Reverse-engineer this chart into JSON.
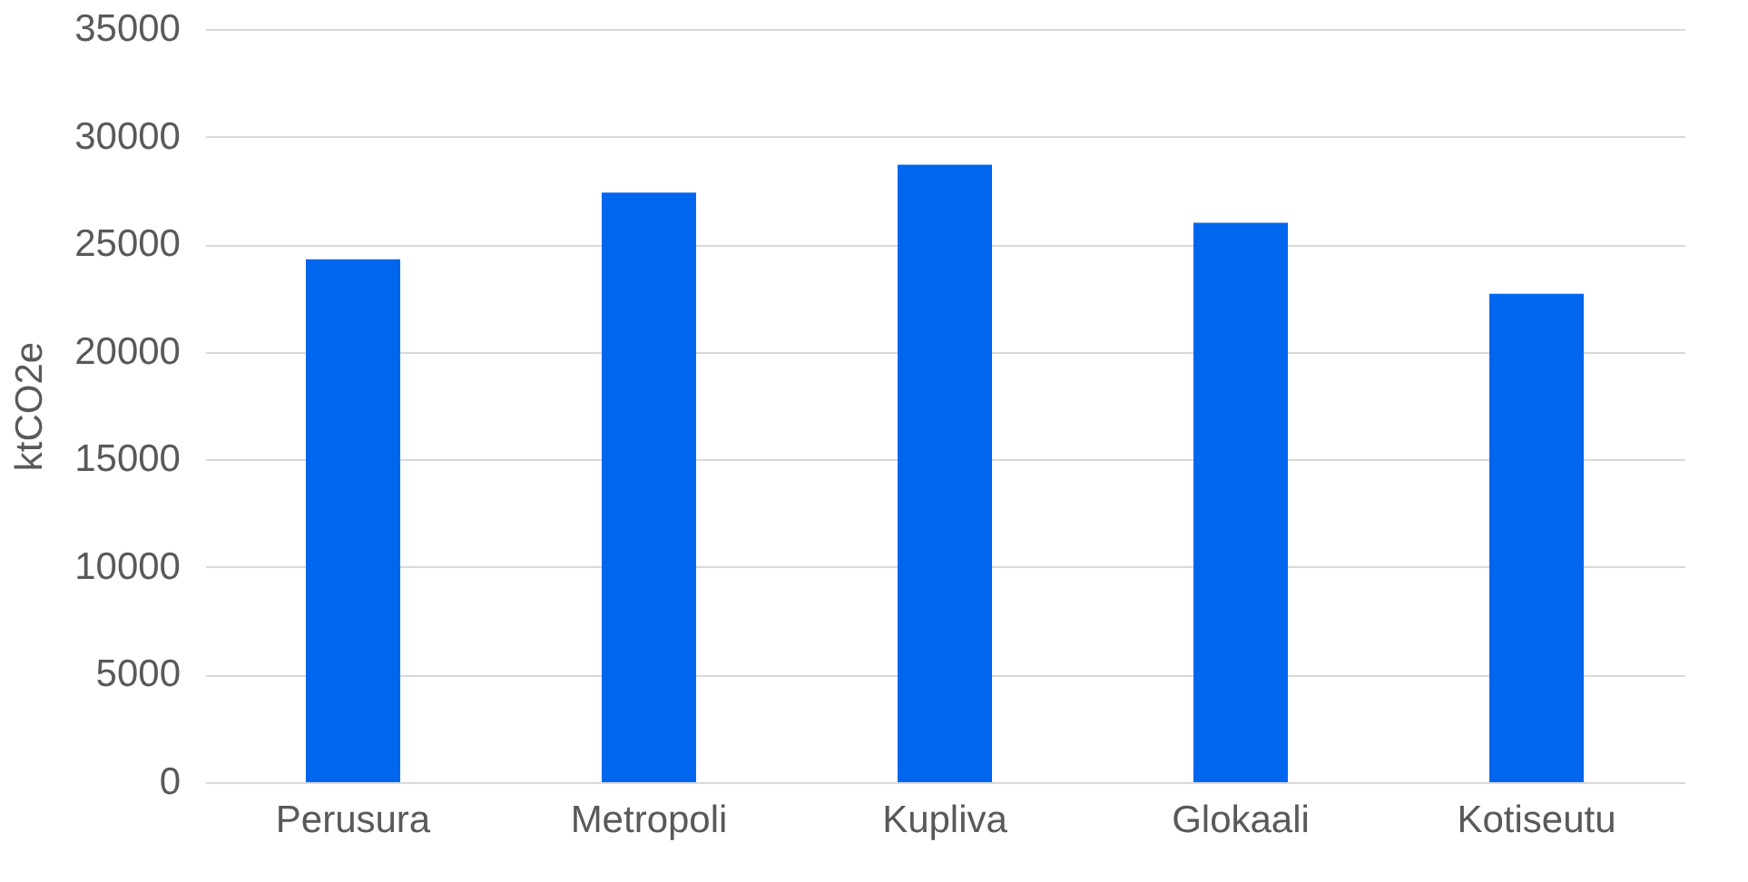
{
  "chart_data": {
    "type": "bar",
    "ylabel": "ktCO2e",
    "categories": [
      "Perusura",
      "Metropoli",
      "Kupliva",
      "Glokaali",
      "Kotiseutu"
    ],
    "values": [
      24300,
      27400,
      28700,
      26000,
      22700
    ],
    "color": "#0066ee",
    "ylim": [
      0,
      35000
    ],
    "yticks": [
      0,
      5000,
      10000,
      15000,
      20000,
      25000,
      30000,
      35000
    ],
    "grid": "y"
  }
}
